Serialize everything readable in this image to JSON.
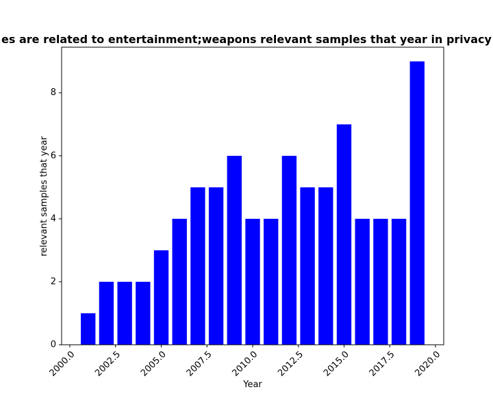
{
  "chart_data": {
    "type": "bar",
    "title": "es are related to entertainment;weapons relevant samples that year in privacy",
    "xlabel": "Year",
    "ylabel": "relevant samples that year",
    "x": [
      2001,
      2002,
      2003,
      2004,
      2005,
      2006,
      2007,
      2008,
      2009,
      2010,
      2011,
      2012,
      2013,
      2014,
      2015,
      2016,
      2017,
      2018,
      2019
    ],
    "values": [
      1,
      2,
      2,
      2,
      3,
      4,
      5,
      5,
      6,
      4,
      4,
      6,
      5,
      5,
      7,
      4,
      4,
      4,
      9
    ],
    "xlim": [
      1999.55,
      2020.45
    ],
    "ylim": [
      0,
      9.45
    ],
    "xticks": [
      2000.0,
      2002.5,
      2005.0,
      2007.5,
      2010.0,
      2012.5,
      2015.0,
      2017.5,
      2020.0
    ],
    "xtick_labels": [
      "2000.0",
      "2002.5",
      "2005.0",
      "2007.5",
      "2010.0",
      "2012.5",
      "2015.0",
      "2017.5",
      "2020.0"
    ],
    "yticks": [
      0,
      2,
      4,
      6,
      8
    ],
    "ytick_labels": [
      "0",
      "2",
      "4",
      "6",
      "8"
    ],
    "bar_width": 0.8,
    "bar_color": "#0000ff",
    "grid": false,
    "legend": "none"
  }
}
